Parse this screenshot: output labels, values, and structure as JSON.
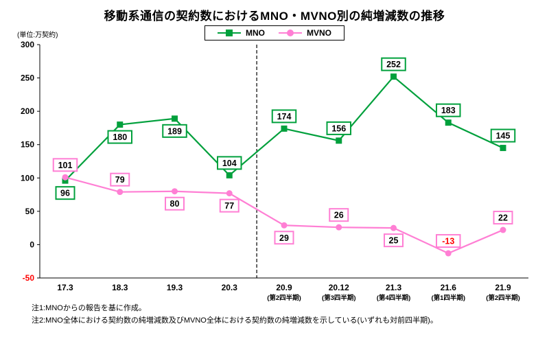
{
  "title": "移動系通信の契約数におけるMNO・MVNO別の純増減数の推移",
  "unit_label": "(単位:万契約)",
  "notes": {
    "note1": "注1:MNOからの報告を基に作成。",
    "note2": "注2:MNO全体における契約数の純増減数及びMVNO全体における契約数の純増減数を示している(いずれも対前四半期)。"
  },
  "colors": {
    "mno_green": "#00A03C",
    "mvno_pink": "#FF7FD4",
    "negative_red": "#FF0000",
    "axis": "#000000"
  },
  "chart_data": {
    "type": "line",
    "title": "移動系通信の契約数におけるMNO・MVNO別の純増減数の推移",
    "unit": "万契約",
    "categories": [
      "17.3",
      "18.3",
      "19.3",
      "20.3",
      "20.9",
      "20.12",
      "21.3",
      "21.6",
      "21.9"
    ],
    "sub_categories": [
      "",
      "",
      "",
      "",
      "(第2四半期)",
      "(第3四半期)",
      "(第4四半期)",
      "(第1四半期)",
      "(第2四半期)"
    ],
    "series": [
      {
        "name": "MNO",
        "marker": "square",
        "color": "#00A03C",
        "values": [
          96,
          180,
          189,
          104,
          174,
          156,
          252,
          183,
          145
        ],
        "label_positions": [
          "below",
          "below",
          "below",
          "above",
          "above",
          "above",
          "above",
          "above",
          "above"
        ]
      },
      {
        "name": "MVNO",
        "marker": "circle",
        "color": "#FF7FD4",
        "values": [
          101,
          79,
          80,
          77,
          29,
          26,
          25,
          -13,
          22
        ],
        "label_positions": [
          "above",
          "above",
          "below",
          "below",
          "below",
          "above",
          "below",
          "above",
          "above"
        ]
      }
    ],
    "ylim": [
      -50,
      300
    ],
    "ytick_step": 50,
    "divider_after_index": 3,
    "legend_position": "top",
    "grid": false
  }
}
